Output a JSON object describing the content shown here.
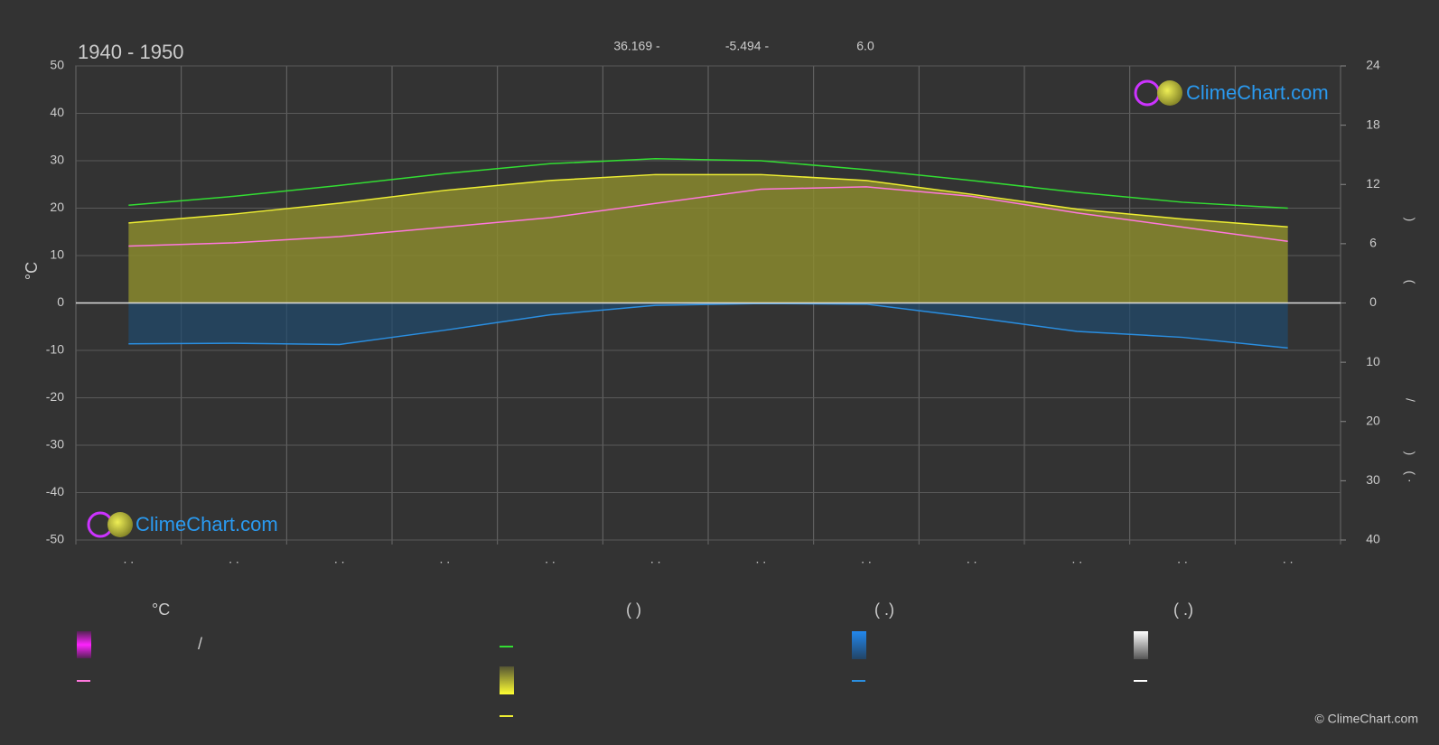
{
  "chart_data": {
    "type": "line",
    "title": "1940 - 1950",
    "subtitle_items": [
      "36.169 -",
      "-5.494 -",
      "6.0"
    ],
    "y_label": "°C",
    "y2_label_parts": [
      ")",
      "(",
      "/",
      ")",
      "( ·"
    ],
    "categories": [
      ". .",
      ". .",
      ". .",
      ". .",
      ". .",
      ". .",
      ". .",
      ". .",
      ". .",
      ". .",
      ". .",
      ". ."
    ],
    "ylim": [
      -50,
      50
    ],
    "yticks": [
      -50,
      -40,
      -30,
      -20,
      -10,
      0,
      10,
      20,
      30,
      40,
      50
    ],
    "y2lim": [
      0,
      24
    ],
    "y2ticks": [
      0,
      6,
      12,
      18,
      24
    ],
    "y3lim": [
      0,
      40
    ],
    "y3ticks": [
      10,
      20,
      30,
      40
    ],
    "grid": true,
    "series": [
      {
        "name": "—",
        "color": "#33dd33",
        "axis": "y2",
        "values": [
          9.9,
          10.8,
          11.9,
          13.1,
          14.1,
          14.6,
          14.4,
          13.5,
          12.4,
          11.2,
          10.2,
          9.6
        ]
      },
      {
        "name": "—",
        "color": "#eeee33",
        "axis": "y2",
        "values": [
          8.1,
          9.0,
          10.1,
          11.4,
          12.4,
          13.0,
          13.0,
          12.4,
          11.0,
          9.5,
          8.5,
          7.7
        ]
      },
      {
        "name": "—",
        "color": "#ff77dd",
        "axis": "y",
        "values": [
          12.0,
          12.7,
          14.0,
          16.0,
          18.0,
          21.0,
          24.0,
          24.5,
          22.5,
          19.0,
          16.0,
          13.0
        ]
      },
      {
        "name": "—",
        "color": "#2a8ee0",
        "axis": "y3",
        "values": [
          6.9,
          6.8,
          7.0,
          4.6,
          2.0,
          0.4,
          0.1,
          0.2,
          2.4,
          4.8,
          5.8,
          7.6
        ]
      }
    ],
    "legend_headers": [
      "°C",
      "(          )",
      "(   .)",
      "(   .)"
    ],
    "legend_slash": "/",
    "logo_text": "ClimeChart.com",
    "copyright": "© ClimeChart.com"
  }
}
